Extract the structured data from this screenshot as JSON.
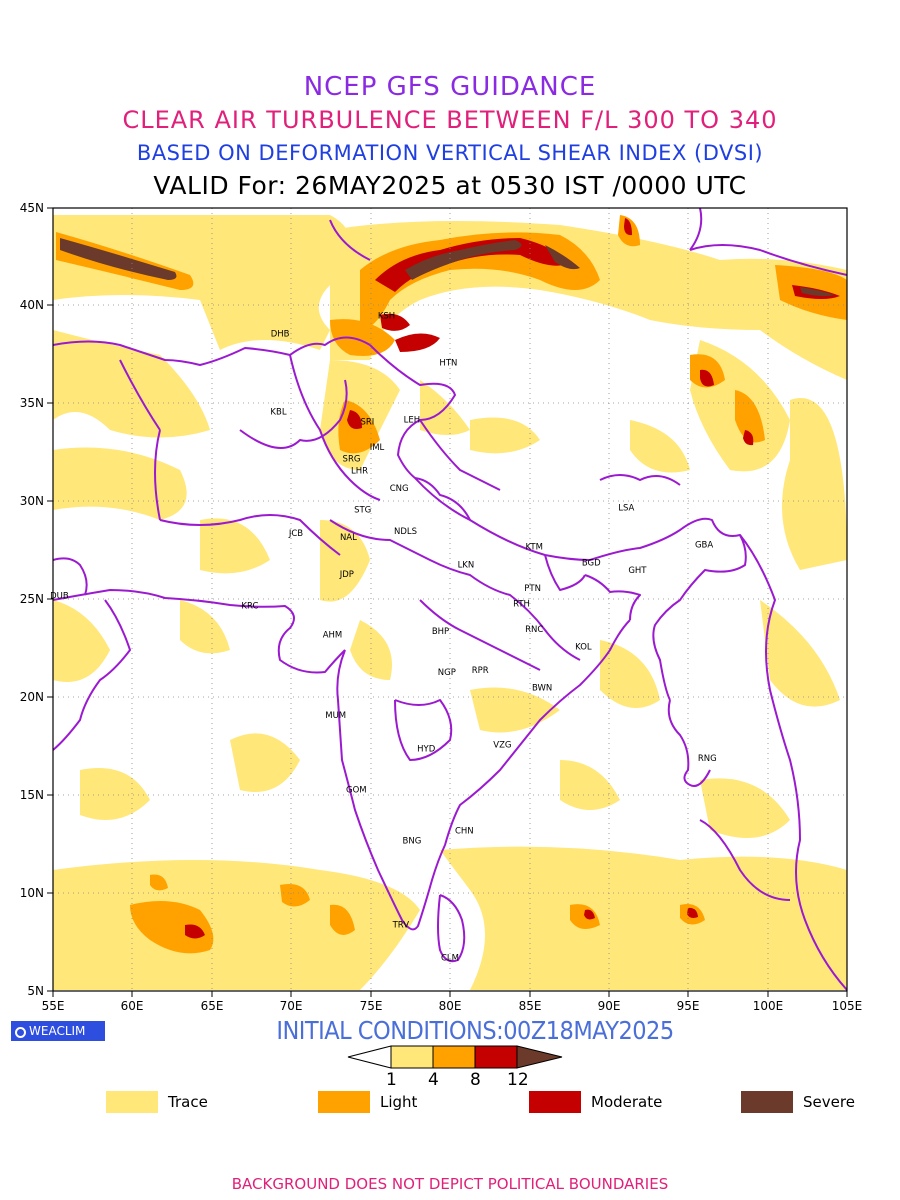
{
  "titles": {
    "line1": "NCEP GFS GUIDANCE",
    "line2": "CLEAR AIR TURBULENCE BETWEEN F/L 300 TO 340",
    "line3": "BASED ON DEFORMATION VERTICAL SHEAR INDEX (DVSI)",
    "line4": "VALID For: 26MAY2025 at 0530 IST /0000 UTC"
  },
  "axes": {
    "lat_labels": [
      "45N",
      "40N",
      "35N",
      "30N",
      "25N",
      "20N",
      "15N",
      "10N",
      "5N"
    ],
    "lon_labels": [
      "55E",
      "60E",
      "65E",
      "70E",
      "75E",
      "80E",
      "85E",
      "90E",
      "95E",
      "100E",
      "105E"
    ]
  },
  "cities": [
    {
      "code": "KSH",
      "lon": 76.0,
      "lat": 39.5
    },
    {
      "code": "DHB",
      "lon": 69.3,
      "lat": 38.6
    },
    {
      "code": "HTN",
      "lon": 79.9,
      "lat": 37.1
    },
    {
      "code": "KBL",
      "lon": 69.2,
      "lat": 34.6
    },
    {
      "code": "SRI",
      "lon": 74.8,
      "lat": 34.1
    },
    {
      "code": "LEH",
      "lon": 77.6,
      "lat": 34.2
    },
    {
      "code": "IML",
      "lon": 75.4,
      "lat": 32.8
    },
    {
      "code": "SRG",
      "lon": 73.8,
      "lat": 32.2
    },
    {
      "code": "LHR",
      "lon": 74.3,
      "lat": 31.6
    },
    {
      "code": "CNG",
      "lon": 76.8,
      "lat": 30.7
    },
    {
      "code": "STG",
      "lon": 74.5,
      "lat": 29.6
    },
    {
      "code": "LSA",
      "lon": 91.1,
      "lat": 29.7
    },
    {
      "code": "JCB",
      "lon": 70.3,
      "lat": 28.4
    },
    {
      "code": "NAL",
      "lon": 73.6,
      "lat": 28.2
    },
    {
      "code": "NDLS",
      "lon": 77.2,
      "lat": 28.5
    },
    {
      "code": "KTM",
      "lon": 85.3,
      "lat": 27.7
    },
    {
      "code": "GBA",
      "lon": 96.0,
      "lat": 27.8
    },
    {
      "code": "LKN",
      "lon": 81.0,
      "lat": 26.8
    },
    {
      "code": "BGD",
      "lon": 88.9,
      "lat": 26.9
    },
    {
      "code": "GHT",
      "lon": 91.8,
      "lat": 26.5
    },
    {
      "code": "JDP",
      "lon": 73.5,
      "lat": 26.3
    },
    {
      "code": "PTN",
      "lon": 85.2,
      "lat": 25.6
    },
    {
      "code": "DUB",
      "lon": 55.4,
      "lat": 25.2
    },
    {
      "code": "KRC",
      "lon": 67.4,
      "lat": 24.7
    },
    {
      "code": "RTH",
      "lon": 84.5,
      "lat": 24.8
    },
    {
      "code": "BHP",
      "lon": 79.4,
      "lat": 23.4
    },
    {
      "code": "AHM",
      "lon": 72.6,
      "lat": 23.2
    },
    {
      "code": "RNC",
      "lon": 85.3,
      "lat": 23.5
    },
    {
      "code": "KOL",
      "lon": 88.4,
      "lat": 22.6
    },
    {
      "code": "NGP",
      "lon": 79.8,
      "lat": 21.3
    },
    {
      "code": "RPR",
      "lon": 81.9,
      "lat": 21.4
    },
    {
      "code": "BWN",
      "lon": 85.8,
      "lat": 20.5
    },
    {
      "code": "MUM",
      "lon": 72.8,
      "lat": 19.1
    },
    {
      "code": "HYD",
      "lon": 78.5,
      "lat": 17.4
    },
    {
      "code": "VZG",
      "lon": 83.3,
      "lat": 17.6
    },
    {
      "code": "RNG",
      "lon": 96.2,
      "lat": 16.9
    },
    {
      "code": "GOM",
      "lon": 74.1,
      "lat": 15.3
    },
    {
      "code": "CHN",
      "lon": 80.9,
      "lat": 13.2
    },
    {
      "code": "BNG",
      "lon": 77.6,
      "lat": 12.7
    },
    {
      "code": "TRV",
      "lon": 76.9,
      "lat": 8.4
    },
    {
      "code": "CLM",
      "lon": 80.0,
      "lat": 6.7
    }
  ],
  "init_conditions": "INITIAL CONDITIONS:00Z18MAY2025",
  "logo_text": "WEACLIM",
  "colorbar": {
    "ticks": [
      "1",
      "4",
      "8",
      "12"
    ],
    "colors": [
      "#ffffff",
      "#ffe77a",
      "#ffa200",
      "#c40000",
      "#6b3a2a"
    ]
  },
  "legend": [
    {
      "label": "Trace",
      "color": "#ffe77a"
    },
    {
      "label": "Light",
      "color": "#ffa200"
    },
    {
      "label": "Moderate",
      "color": "#c40000"
    },
    {
      "label": "Severe",
      "color": "#6b3a2a"
    }
  ],
  "footer": "BACKGROUND DOES NOT DEPICT POLITICAL BOUNDARIES",
  "map_colors": {
    "border": "#9b1ad0",
    "grid": "#888888"
  }
}
